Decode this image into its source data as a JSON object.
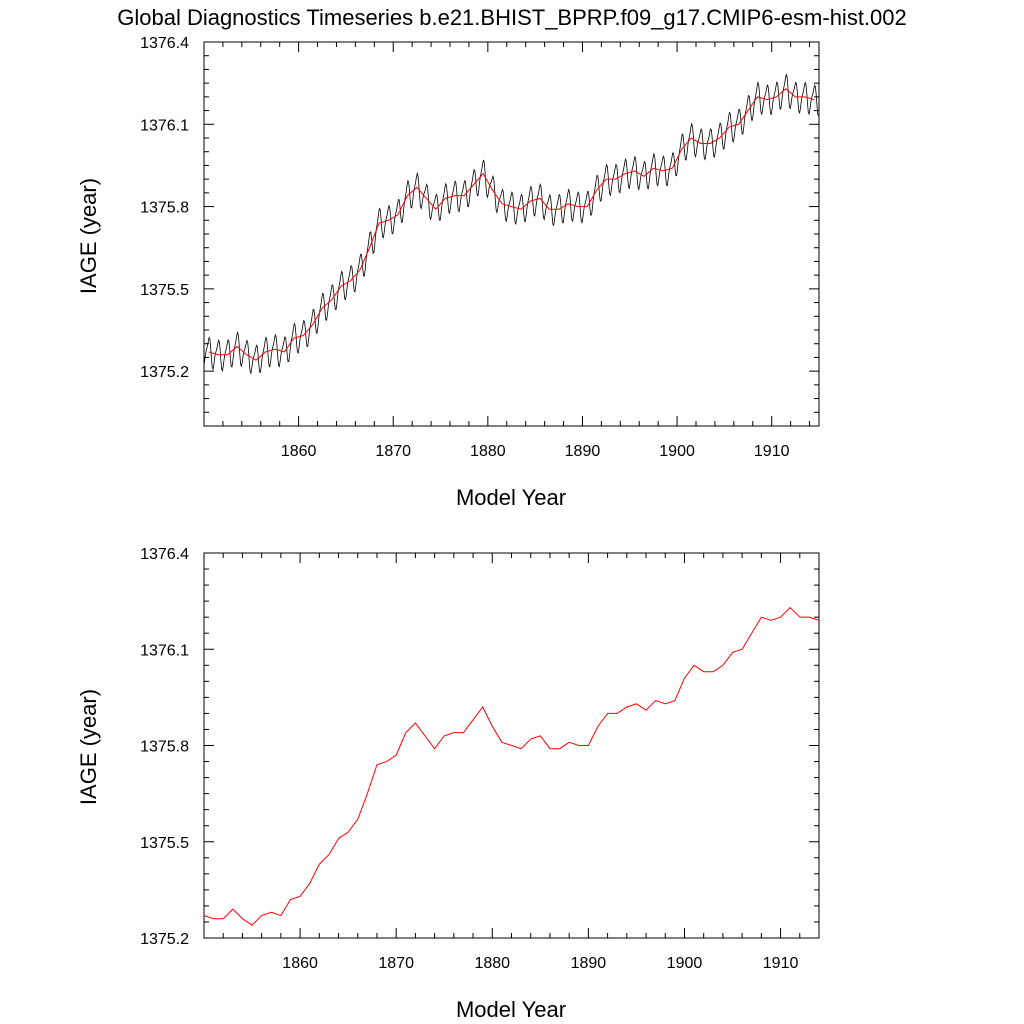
{
  "title": "Global Diagnostics Timeseries b.e21.BHIST_BPRP.f09_g17.CMIP6-esm-hist.002",
  "colors": {
    "monthly": "#000000",
    "annual": "#ff0000",
    "axes": "#000000",
    "background": "#ffffff"
  },
  "chart_data": [
    {
      "type": "line",
      "xlabel": "Model Year",
      "ylabel": "IAGE (year)",
      "xlim": [
        1850,
        1915
      ],
      "ylim": [
        1375.0,
        1376.4
      ],
      "xticks": [
        1860,
        1870,
        1880,
        1890,
        1900,
        1910
      ],
      "yticks": [
        1375.2,
        1375.5,
        1375.8,
        1376.1,
        1376.4
      ],
      "ytick_labels": [
        "1375.2",
        "1375.5",
        "1375.8",
        "1376.1",
        "1376.4"
      ],
      "grid": false,
      "series": [
        {
          "kind": "monthly-seasonal-cycle",
          "color": "#000000",
          "seasonal_amplitude": 0.05,
          "follows": "annual",
          "x_range": [
            1850,
            1915
          ]
        },
        {
          "kind": "annual-mean",
          "color": "#ff0000",
          "x": [
            1850.5,
            1851.5,
            1852.5,
            1853.5,
            1854.5,
            1855.5,
            1856.5,
            1857.5,
            1858.5,
            1859.5,
            1860.5,
            1861.5,
            1862.5,
            1863.5,
            1864.5,
            1865.5,
            1866.5,
            1867.5,
            1868.5,
            1869.5,
            1870.5,
            1871.5,
            1872.5,
            1873.5,
            1874.5,
            1875.5,
            1876.5,
            1877.5,
            1878.5,
            1879.5,
            1880.5,
            1881.5,
            1882.5,
            1883.5,
            1884.5,
            1885.5,
            1886.5,
            1887.5,
            1888.5,
            1889.5,
            1890.5,
            1891.5,
            1892.5,
            1893.5,
            1894.5,
            1895.5,
            1896.5,
            1897.5,
            1898.5,
            1899.5,
            1900.5,
            1901.5,
            1902.5,
            1903.5,
            1904.5,
            1905.5,
            1906.5,
            1907.5,
            1908.5,
            1909.5,
            1910.5,
            1911.5,
            1912.5,
            1913.5,
            1914.5
          ],
          "values": [
            1375.27,
            1375.26,
            1375.26,
            1375.29,
            1375.26,
            1375.24,
            1375.27,
            1375.28,
            1375.27,
            1375.32,
            1375.33,
            1375.37,
            1375.43,
            1375.46,
            1375.51,
            1375.53,
            1375.57,
            1375.65,
            1375.74,
            1375.75,
            1375.77,
            1375.84,
            1375.87,
            1375.83,
            1375.79,
            1375.83,
            1375.84,
            1375.84,
            1375.88,
            1375.92,
            1375.86,
            1375.81,
            1375.8,
            1375.79,
            1375.82,
            1375.83,
            1375.79,
            1375.79,
            1375.81,
            1375.8,
            1375.8,
            1375.86,
            1375.9,
            1375.9,
            1375.92,
            1375.93,
            1375.91,
            1375.94,
            1375.93,
            1375.94,
            1376.01,
            1376.05,
            1376.03,
            1376.03,
            1376.05,
            1376.09,
            1376.1,
            1376.15,
            1376.2,
            1376.19,
            1376.2,
            1376.23,
            1376.2,
            1376.2,
            1376.19
          ]
        }
      ]
    },
    {
      "type": "line",
      "xlabel": "Model Year",
      "ylabel": "IAGE (year)",
      "xlim": [
        1850,
        1914
      ],
      "ylim": [
        1375.2,
        1376.4
      ],
      "xticks": [
        1860,
        1870,
        1880,
        1890,
        1900,
        1910
      ],
      "yticks": [
        1375.2,
        1375.5,
        1375.8,
        1376.1,
        1376.4
      ],
      "ytick_labels": [
        "1375.2",
        "1375.5",
        "1375.8",
        "1376.1",
        "1376.4"
      ],
      "grid": false,
      "series": [
        {
          "kind": "annual-mean",
          "color": "#ff0000",
          "x": [
            1850.0,
            1851.0,
            1852.0,
            1853.0,
            1854.0,
            1855.0,
            1856.0,
            1857.0,
            1858.0,
            1859.0,
            1860.0,
            1861.0,
            1862.0,
            1863.0,
            1864.0,
            1865.0,
            1866.0,
            1867.0,
            1868.0,
            1869.0,
            1870.0,
            1871.0,
            1872.0,
            1873.0,
            1874.0,
            1875.0,
            1876.0,
            1877.0,
            1878.0,
            1879.0,
            1880.0,
            1881.0,
            1882.0,
            1883.0,
            1884.0,
            1885.0,
            1886.0,
            1887.0,
            1888.0,
            1889.0,
            1890.0,
            1891.0,
            1892.0,
            1893.0,
            1894.0,
            1895.0,
            1896.0,
            1897.0,
            1898.0,
            1899.0,
            1900.0,
            1901.0,
            1902.0,
            1903.0,
            1904.0,
            1905.0,
            1906.0,
            1907.0,
            1908.0,
            1909.0,
            1910.0,
            1911.0,
            1912.0,
            1913.0,
            1914.0
          ],
          "values": [
            1375.27,
            1375.26,
            1375.26,
            1375.29,
            1375.26,
            1375.24,
            1375.27,
            1375.28,
            1375.27,
            1375.32,
            1375.33,
            1375.37,
            1375.43,
            1375.46,
            1375.51,
            1375.53,
            1375.57,
            1375.65,
            1375.74,
            1375.75,
            1375.77,
            1375.84,
            1375.87,
            1375.83,
            1375.79,
            1375.83,
            1375.84,
            1375.84,
            1375.88,
            1375.92,
            1375.86,
            1375.81,
            1375.8,
            1375.79,
            1375.82,
            1375.83,
            1375.79,
            1375.79,
            1375.81,
            1375.8,
            1375.8,
            1375.86,
            1375.9,
            1375.9,
            1375.92,
            1375.93,
            1375.91,
            1375.94,
            1375.93,
            1375.94,
            1376.01,
            1376.05,
            1376.03,
            1376.03,
            1376.05,
            1376.09,
            1376.1,
            1376.15,
            1376.2,
            1376.19,
            1376.2,
            1376.23,
            1376.2,
            1376.2,
            1376.19
          ]
        }
      ]
    }
  ]
}
